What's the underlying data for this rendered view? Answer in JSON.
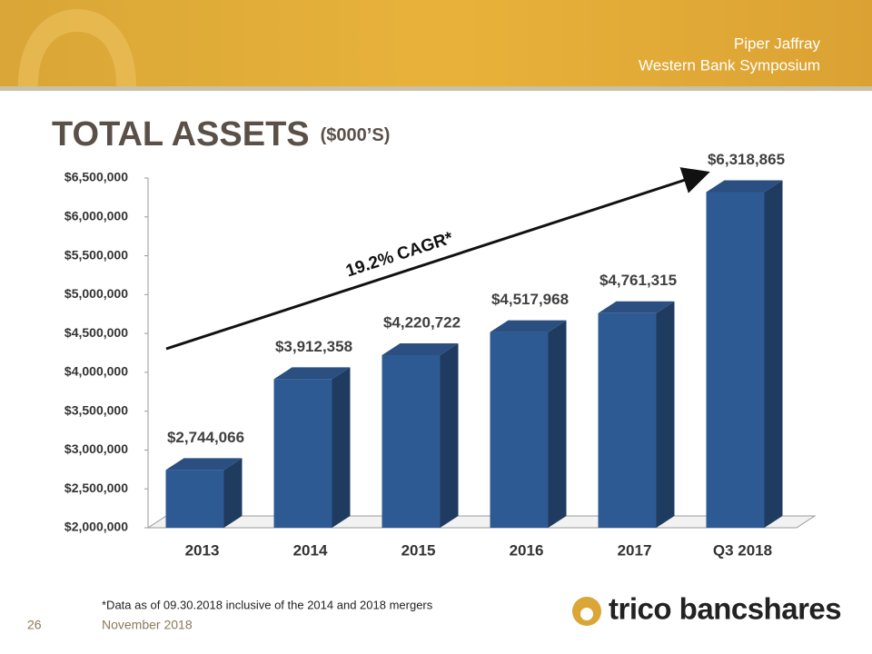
{
  "header": {
    "event_line1": "Piper Jaffray",
    "event_line2": "Western Bank Symposium"
  },
  "chart_data": {
    "type": "bar3d",
    "title": "TOTAL ASSETS",
    "subtitle": "($000’S)",
    "categories": [
      "2013",
      "2014",
      "2015",
      "2016",
      "2017",
      "Q3 2018"
    ],
    "values": [
      2744066,
      3912358,
      4220722,
      4517968,
      4761315,
      6318865
    ],
    "value_labels": [
      "$2,744,066",
      "$3,912,358",
      "$4,220,722",
      "$4,517,968",
      "$4,761,315",
      "$6,318,865"
    ],
    "color": "#2e5a94",
    "ylim": [
      2000000,
      6500000
    ],
    "yticks": [
      {
        "value": 2000000,
        "label": "$2,000,000"
      },
      {
        "value": 2500000,
        "label": "$2,500,000"
      },
      {
        "value": 3000000,
        "label": "$3,000,000"
      },
      {
        "value": 3500000,
        "label": "$3,500,000"
      },
      {
        "value": 4000000,
        "label": "$4,000,000"
      },
      {
        "value": 4500000,
        "label": "$4,500,000"
      },
      {
        "value": 5000000,
        "label": "$5,000,000"
      },
      {
        "value": 5500000,
        "label": "$5,500,000"
      },
      {
        "value": 6000000,
        "label": "$6,000,000"
      },
      {
        "value": 6500000,
        "label": "$6,500,000"
      }
    ],
    "grid": false,
    "annotation": "19.2% CAGR*"
  },
  "footnote": "*Data as of 09.30.2018 inclusive of the 2014 and 2018 mergers",
  "footer": {
    "page_number": "26",
    "date": "November 2018",
    "logo_text": "trico bancshares"
  }
}
